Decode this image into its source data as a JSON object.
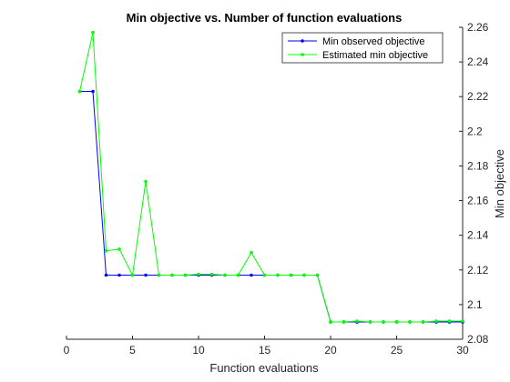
{
  "chart_data": {
    "type": "line",
    "title": "Min objective vs. Number of function evaluations",
    "xlabel": "Function evaluations",
    "ylabel": "Min objective",
    "xlim": [
      0,
      30
    ],
    "ylim": [
      2.08,
      2.26
    ],
    "xticks": [
      0,
      5,
      10,
      15,
      20,
      25,
      30
    ],
    "xtick_labels": [
      "0",
      "5",
      "10",
      "15",
      "20",
      "25",
      "30"
    ],
    "yticks": [
      2.08,
      2.1,
      2.12,
      2.14,
      2.16,
      2.18,
      2.2,
      2.22,
      2.24,
      2.26
    ],
    "ytick_labels": [
      "2.08",
      "2.1",
      "2.12",
      "2.14",
      "2.16",
      "2.18",
      "2.2",
      "2.22",
      "2.24",
      "2.26"
    ],
    "y_axis_side": "right",
    "grid": false,
    "legend_position": "top-right",
    "x": [
      1,
      2,
      3,
      4,
      5,
      6,
      7,
      8,
      9,
      10,
      11,
      12,
      13,
      14,
      15,
      16,
      17,
      18,
      19,
      20,
      21,
      22,
      23,
      24,
      25,
      26,
      27,
      28,
      29,
      30
    ],
    "series": [
      {
        "name": "Min observed objective",
        "color": "#0000ff",
        "marker": "dot",
        "values": [
          2.223,
          2.223,
          2.117,
          2.117,
          2.117,
          2.117,
          2.117,
          2.117,
          2.117,
          2.117,
          2.117,
          2.117,
          2.117,
          2.117,
          2.117,
          2.117,
          2.117,
          2.117,
          2.117,
          2.09,
          2.09,
          2.09,
          2.09,
          2.09,
          2.09,
          2.09,
          2.09,
          2.09,
          2.09,
          2.09
        ]
      },
      {
        "name": "Estimated min objective",
        "color": "#00ff00",
        "marker": "dot",
        "values": [
          2.223,
          2.257,
          2.131,
          2.132,
          2.117,
          2.171,
          2.117,
          2.117,
          2.117,
          2.1175,
          2.1175,
          2.117,
          2.117,
          2.13,
          2.117,
          2.117,
          2.117,
          2.117,
          2.117,
          2.09,
          2.09,
          2.0905,
          2.09,
          2.09,
          2.09,
          2.09,
          2.09,
          2.0905,
          2.0905,
          2.0905
        ]
      }
    ]
  }
}
